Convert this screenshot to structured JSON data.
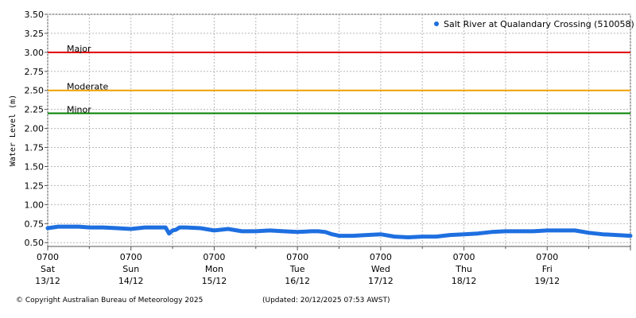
{
  "chart_data": {
    "type": "line",
    "ylabel": "Water Level (m)",
    "ylim": [
      0.45,
      3.5
    ],
    "yticks": [
      "3.50",
      "3.25",
      "3.00",
      "2.75",
      "2.50",
      "2.25",
      "2.00",
      "1.75",
      "1.50",
      "1.25",
      "1.00",
      "0.75",
      "0.50"
    ],
    "xlim_hours": [
      0,
      168
    ],
    "x_ticks": [
      {
        "hour": 0,
        "time": "0700",
        "day": "Sat",
        "date": "13/12"
      },
      {
        "hour": 24,
        "time": "0700",
        "day": "Sun",
        "date": "14/12"
      },
      {
        "hour": 48,
        "time": "0700",
        "day": "Mon",
        "date": "15/12"
      },
      {
        "hour": 72,
        "time": "0700",
        "day": "Tue",
        "date": "16/12"
      },
      {
        "hour": 96,
        "time": "0700",
        "day": "Wed",
        "date": "17/12"
      },
      {
        "hour": 120,
        "time": "0700",
        "day": "Thu",
        "date": "18/12"
      },
      {
        "hour": 144,
        "time": "0700",
        "day": "Fri",
        "date": "19/12"
      }
    ],
    "thresholds": [
      {
        "label": "Major",
        "value": 3.0,
        "color": "#e00000"
      },
      {
        "label": "Moderate",
        "value": 2.5,
        "color": "#f0a000"
      },
      {
        "label": "Minor",
        "value": 2.2,
        "color": "#008000"
      }
    ],
    "series": [
      {
        "name": "Salt River at Qualandary Crossing (510058)",
        "color": "#1e6fe0",
        "x": [
          0,
          3,
          6,
          9,
          12,
          16,
          20,
          24,
          28,
          32,
          34,
          35,
          36,
          37,
          38,
          40,
          44,
          48,
          52,
          56,
          60,
          64,
          68,
          72,
          76,
          78,
          80,
          82,
          84,
          88,
          92,
          96,
          100,
          104,
          108,
          112,
          116,
          120,
          124,
          128,
          132,
          136,
          140,
          144,
          148,
          152,
          156,
          160,
          164,
          168
        ],
        "y": [
          0.69,
          0.71,
          0.71,
          0.71,
          0.7,
          0.7,
          0.69,
          0.68,
          0.7,
          0.7,
          0.7,
          0.62,
          0.66,
          0.67,
          0.7,
          0.7,
          0.69,
          0.66,
          0.68,
          0.65,
          0.65,
          0.66,
          0.65,
          0.64,
          0.65,
          0.65,
          0.64,
          0.61,
          0.59,
          0.59,
          0.6,
          0.61,
          0.58,
          0.57,
          0.58,
          0.58,
          0.6,
          0.61,
          0.62,
          0.64,
          0.65,
          0.65,
          0.65,
          0.66,
          0.66,
          0.66,
          0.63,
          0.61,
          0.6,
          0.59
        ]
      }
    ]
  },
  "footer": {
    "copyright": "© Copyright Australian Bureau of Meteorology 2025",
    "updated": "(Updated: 20/12/2025 07:53 AWST)"
  }
}
